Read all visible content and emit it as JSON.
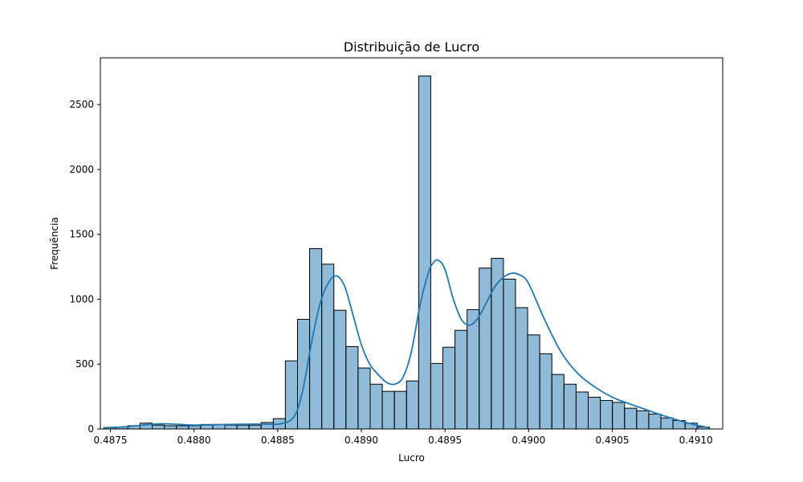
{
  "chart_data": {
    "type": "bar",
    "title": "Distribuição de Lucro",
    "xlabel": "Lucro",
    "ylabel": "Frequência",
    "xlim": [
      0.48744,
      0.49116
    ],
    "ylim": [
      0,
      2860
    ],
    "xticks": [
      {
        "value": 0.4875,
        "label": "0.4875"
      },
      {
        "value": 0.488,
        "label": "0.4880"
      },
      {
        "value": 0.4885,
        "label": "0.4885"
      },
      {
        "value": 0.489,
        "label": "0.4890"
      },
      {
        "value": 0.4895,
        "label": "0.4895"
      },
      {
        "value": 0.49,
        "label": "0.4900"
      },
      {
        "value": 0.4905,
        "label": "0.4905"
      },
      {
        "value": 0.491,
        "label": "0.4910"
      }
    ],
    "yticks": [
      {
        "value": 0,
        "label": "0"
      },
      {
        "value": 500,
        "label": "500"
      },
      {
        "value": 1000,
        "label": "1000"
      },
      {
        "value": 1500,
        "label": "1500"
      },
      {
        "value": 2000,
        "label": "2000"
      },
      {
        "value": 2500,
        "label": "2500"
      }
    ],
    "grid": false,
    "bar_color": "#1f77b4",
    "bar_opacity": 0.5,
    "edge_color": "#000000",
    "kde_color": "#1f77b4",
    "bins": {
      "x_start": 0.48746,
      "x_end": 0.49108,
      "counts": [
        10,
        15,
        25,
        45,
        30,
        25,
        25,
        25,
        35,
        35,
        30,
        30,
        30,
        50,
        80,
        525,
        845,
        1390,
        1270,
        915,
        635,
        470,
        345,
        290,
        290,
        370,
        2720,
        505,
        630,
        760,
        920,
        1240,
        1315,
        1155,
        935,
        725,
        580,
        420,
        345,
        285,
        245,
        220,
        205,
        160,
        140,
        115,
        85,
        65,
        45,
        15
      ]
    },
    "kde": {
      "x": [
        0.48746,
        0.4876,
        0.4878,
        0.488,
        0.4882,
        0.4884,
        0.48852,
        0.4886,
        0.48865,
        0.4887,
        0.48875,
        0.4888,
        0.48885,
        0.4889,
        0.48895,
        0.489,
        0.48905,
        0.4891,
        0.48915,
        0.4892,
        0.48925,
        0.4893,
        0.48935,
        0.4894,
        0.48943,
        0.48946,
        0.4895,
        0.48955,
        0.4896,
        0.48965,
        0.4897,
        0.48975,
        0.4898,
        0.48985,
        0.4899,
        0.48995,
        0.49,
        0.4901,
        0.4902,
        0.4903,
        0.4904,
        0.4905,
        0.4906,
        0.4907,
        0.4908,
        0.4909,
        0.491,
        0.49108
      ],
      "y": [
        10,
        18,
        40,
        30,
        35,
        38,
        40,
        100,
        300,
        650,
        950,
        1120,
        1180,
        1100,
        880,
        650,
        500,
        420,
        360,
        345,
        400,
        600,
        950,
        1200,
        1280,
        1300,
        1230,
        1000,
        840,
        800,
        860,
        980,
        1100,
        1170,
        1200,
        1185,
        1120,
        830,
        580,
        420,
        320,
        245,
        195,
        150,
        105,
        65,
        30,
        10
      ]
    }
  }
}
